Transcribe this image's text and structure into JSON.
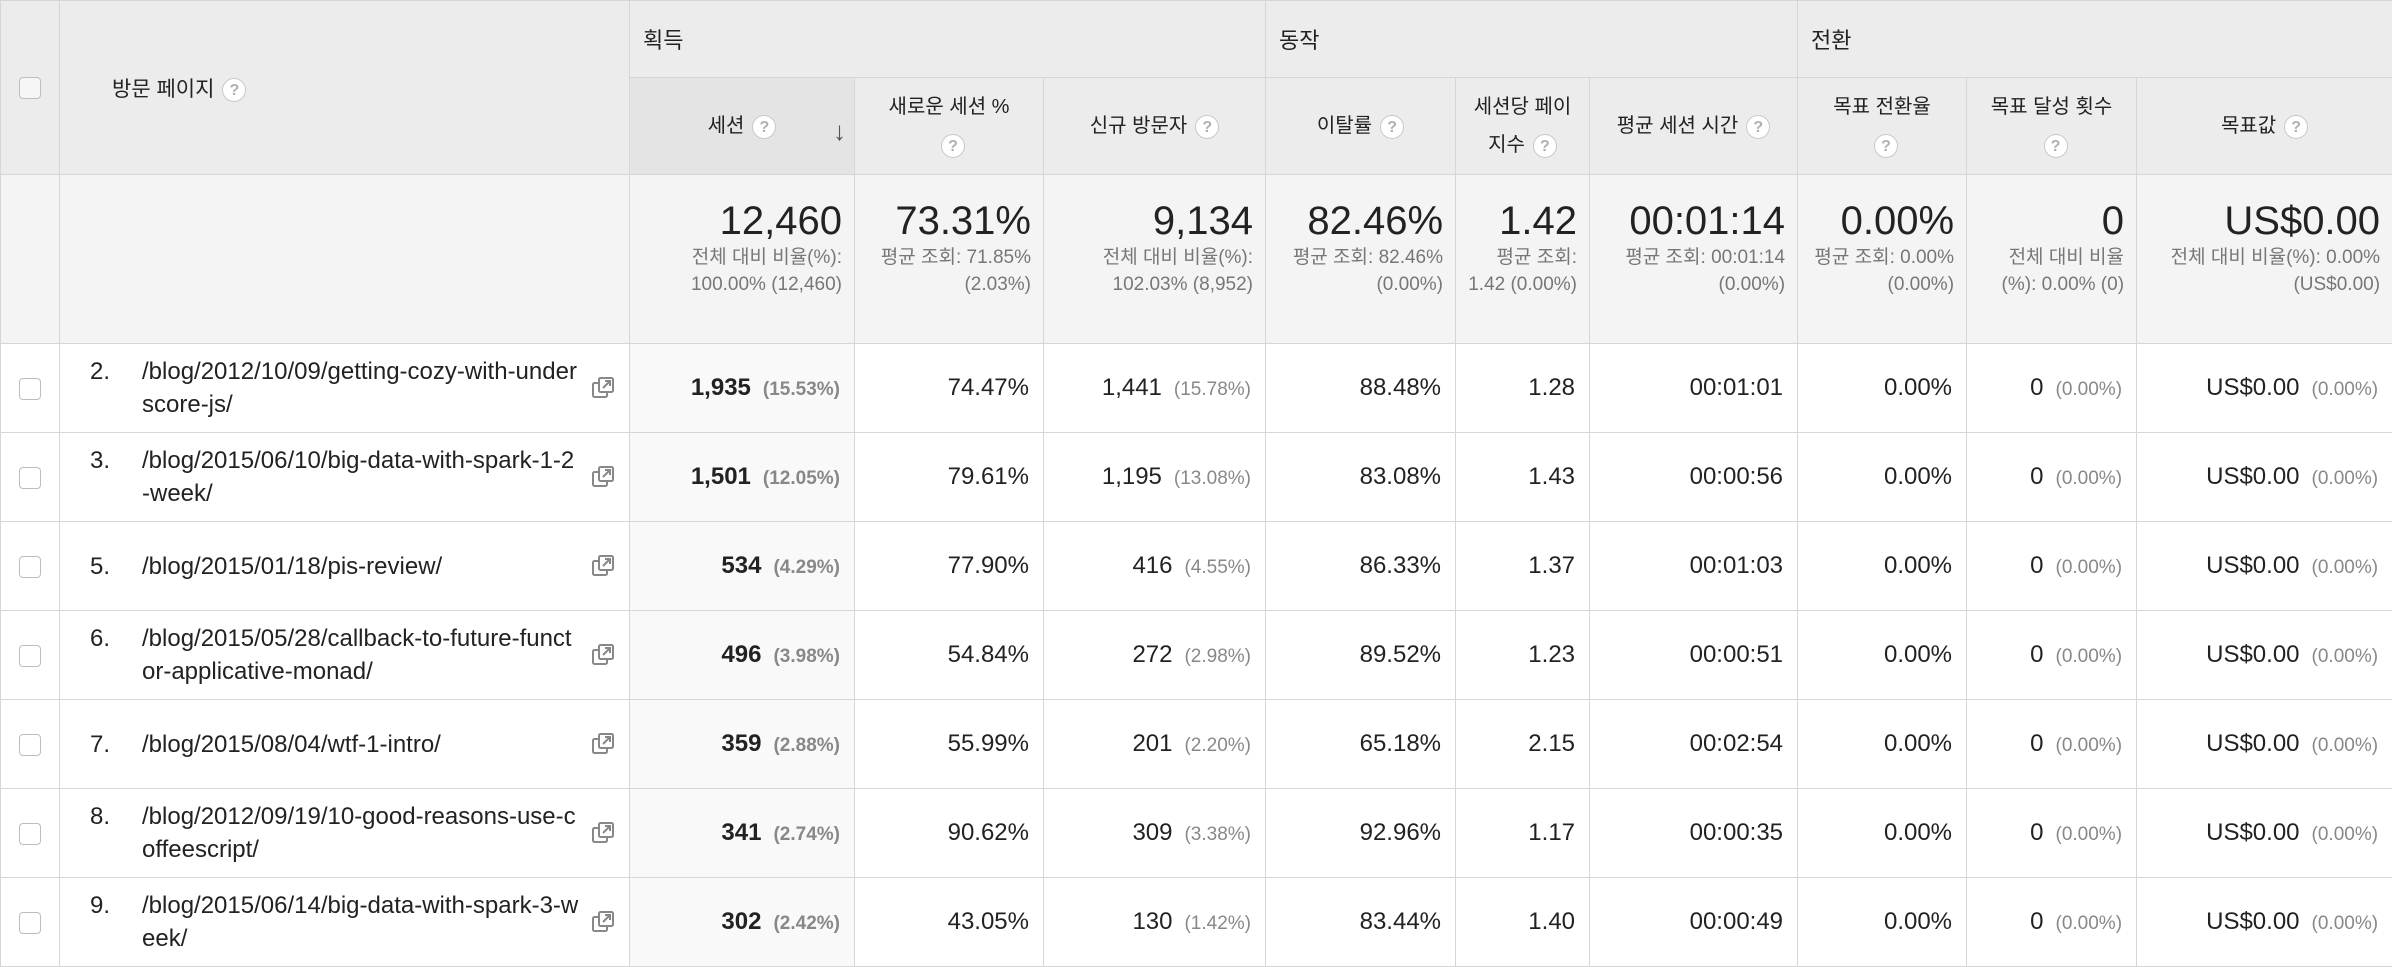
{
  "headers": {
    "page_label": "방문 페이지",
    "groups": {
      "acquisition": "획득",
      "behavior": "동작",
      "conversion": "전환"
    },
    "columns": {
      "sessions": "세션",
      "new_session_pct": "새로운 세션 %",
      "new_users": "신규 방문자",
      "bounce_rate": "이탈률",
      "pages_per_session": "세션당 페이지수",
      "avg_session_duration": "평균 세션 시간",
      "goal_conversion_rate": "목표 전환율",
      "goal_completions": "목표 달성 횟수",
      "goal_value": "목표값"
    },
    "help_glyph": "?",
    "sort_glyph": "↓"
  },
  "totals": {
    "sessions": {
      "value": "12,460",
      "sub": "전체 대비 비율(%): 100.00% (12,460)"
    },
    "new_session_pct": {
      "value": "73.31%",
      "sub": "평균 조회: 71.85% (2.03%)"
    },
    "new_users": {
      "value": "9,134",
      "sub": "전체 대비 비율(%): 102.03% (8,952)"
    },
    "bounce_rate": {
      "value": "82.46%",
      "sub": "평균 조회: 82.46% (0.00%)"
    },
    "pages_per_session": {
      "value": "1.42",
      "sub": "평균 조회: 1.42 (0.00%)"
    },
    "avg_session_duration": {
      "value": "00:01:14",
      "sub": "평균 조회: 00:01:14 (0.00%)"
    },
    "goal_conversion_rate": {
      "value": "0.00%",
      "sub": "평균 조회: 0.00% (0.00%)"
    },
    "goal_completions": {
      "value": "0",
      "sub": "전체 대비 비율 (%): 0.00% (0)"
    },
    "goal_value": {
      "value": "US$0.00",
      "sub": "전체 대비 비율(%): 0.00% (US$0.00)"
    }
  },
  "rows": [
    {
      "num": "2.",
      "page": "/blog/2012/10/09/getting-cozy-with-underscore-js/",
      "sessions": "1,935",
      "sessions_pct": "(15.53%)",
      "new_session_pct": "74.47%",
      "new_users": "1,441",
      "new_users_pct": "(15.78%)",
      "bounce_rate": "88.48%",
      "pages_per_session": "1.28",
      "avg_session_duration": "00:01:01",
      "goal_conversion_rate": "0.00%",
      "goal_completions": "0",
      "goal_completions_pct": "(0.00%)",
      "goal_value": "US$0.00",
      "goal_value_pct": "(0.00%)"
    },
    {
      "num": "3.",
      "page": "/blog/2015/06/10/big-data-with-spark-1-2-week/",
      "sessions": "1,501",
      "sessions_pct": "(12.05%)",
      "new_session_pct": "79.61%",
      "new_users": "1,195",
      "new_users_pct": "(13.08%)",
      "bounce_rate": "83.08%",
      "pages_per_session": "1.43",
      "avg_session_duration": "00:00:56",
      "goal_conversion_rate": "0.00%",
      "goal_completions": "0",
      "goal_completions_pct": "(0.00%)",
      "goal_value": "US$0.00",
      "goal_value_pct": "(0.00%)"
    },
    {
      "num": "5.",
      "page": "/blog/2015/01/18/pis-review/",
      "sessions": "534",
      "sessions_pct": "(4.29%)",
      "new_session_pct": "77.90%",
      "new_users": "416",
      "new_users_pct": "(4.55%)",
      "bounce_rate": "86.33%",
      "pages_per_session": "1.37",
      "avg_session_duration": "00:01:03",
      "goal_conversion_rate": "0.00%",
      "goal_completions": "0",
      "goal_completions_pct": "(0.00%)",
      "goal_value": "US$0.00",
      "goal_value_pct": "(0.00%)"
    },
    {
      "num": "6.",
      "page": "/blog/2015/05/28/callback-to-future-functor-applicative-monad/",
      "sessions": "496",
      "sessions_pct": "(3.98%)",
      "new_session_pct": "54.84%",
      "new_users": "272",
      "new_users_pct": "(2.98%)",
      "bounce_rate": "89.52%",
      "pages_per_session": "1.23",
      "avg_session_duration": "00:00:51",
      "goal_conversion_rate": "0.00%",
      "goal_completions": "0",
      "goal_completions_pct": "(0.00%)",
      "goal_value": "US$0.00",
      "goal_value_pct": "(0.00%)"
    },
    {
      "num": "7.",
      "page": "/blog/2015/08/04/wtf-1-intro/",
      "sessions": "359",
      "sessions_pct": "(2.88%)",
      "new_session_pct": "55.99%",
      "new_users": "201",
      "new_users_pct": "(2.20%)",
      "bounce_rate": "65.18%",
      "pages_per_session": "2.15",
      "avg_session_duration": "00:02:54",
      "goal_conversion_rate": "0.00%",
      "goal_completions": "0",
      "goal_completions_pct": "(0.00%)",
      "goal_value": "US$0.00",
      "goal_value_pct": "(0.00%)"
    },
    {
      "num": "8.",
      "page": "/blog/2012/09/19/10-good-reasons-use-coffeescript/",
      "sessions": "341",
      "sessions_pct": "(2.74%)",
      "new_session_pct": "90.62%",
      "new_users": "309",
      "new_users_pct": "(3.38%)",
      "bounce_rate": "92.96%",
      "pages_per_session": "1.17",
      "avg_session_duration": "00:00:35",
      "goal_conversion_rate": "0.00%",
      "goal_completions": "0",
      "goal_completions_pct": "(0.00%)",
      "goal_value": "US$0.00",
      "goal_value_pct": "(0.00%)"
    },
    {
      "num": "9.",
      "page": "/blog/2015/06/14/big-data-with-spark-3-week/",
      "sessions": "302",
      "sessions_pct": "(2.42%)",
      "new_session_pct": "43.05%",
      "new_users": "130",
      "new_users_pct": "(1.42%)",
      "bounce_rate": "83.44%",
      "pages_per_session": "1.40",
      "avg_session_duration": "00:00:49",
      "goal_conversion_rate": "0.00%",
      "goal_completions": "0",
      "goal_completions_pct": "(0.00%)",
      "goal_value": "US$0.00",
      "goal_value_pct": "(0.00%)"
    }
  ]
}
